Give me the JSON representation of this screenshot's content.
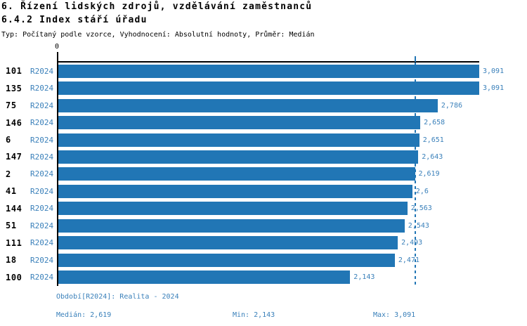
{
  "header": {
    "title": "6. Řízení lidských zdrojů, vzdělávání zaměstnanců",
    "subtitle": "6.4.2 Index stáří úřadu",
    "meta": "Typ: Počítaný podle vzorce, Vyhodnocení: Absolutní hodnoty, Průměr: Medián"
  },
  "chart_data": {
    "type": "bar",
    "orientation": "horizontal",
    "title": "6.4.2 Index stáří úřadu",
    "categories": [
      "101",
      "135",
      "75",
      "146",
      "6",
      "147",
      "2",
      "41",
      "144",
      "51",
      "111",
      "18",
      "100"
    ],
    "period_label": "R2024",
    "series": [
      {
        "name": "R2024",
        "values": [
          3.091,
          3.091,
          2.786,
          2.658,
          2.651,
          2.643,
          2.619,
          2.6,
          2.563,
          2.543,
          2.493,
          2.471,
          2.143
        ],
        "value_labels": [
          "3,091",
          "3,091",
          "2,786",
          "2,658",
          "2,651",
          "2,643",
          "2,619",
          "2,6",
          "2,563",
          "2,543",
          "2,493",
          "2,471",
          "2,143"
        ]
      }
    ],
    "x_axis": {
      "origin_label": "0",
      "min": 0,
      "max": 3.091
    },
    "median_line": {
      "value": 2.619,
      "label": "Medián"
    },
    "grid": "off",
    "legend_position": "none",
    "colors": {
      "bar": "#2176b5",
      "blue_text": "#3a80ba",
      "axis": "#000000"
    }
  },
  "footer": {
    "period": "Období[R2024]: Realita - 2024",
    "median": "Medián: 2,619",
    "min": "Min: 2,143",
    "max": "Max: 3,091"
  }
}
